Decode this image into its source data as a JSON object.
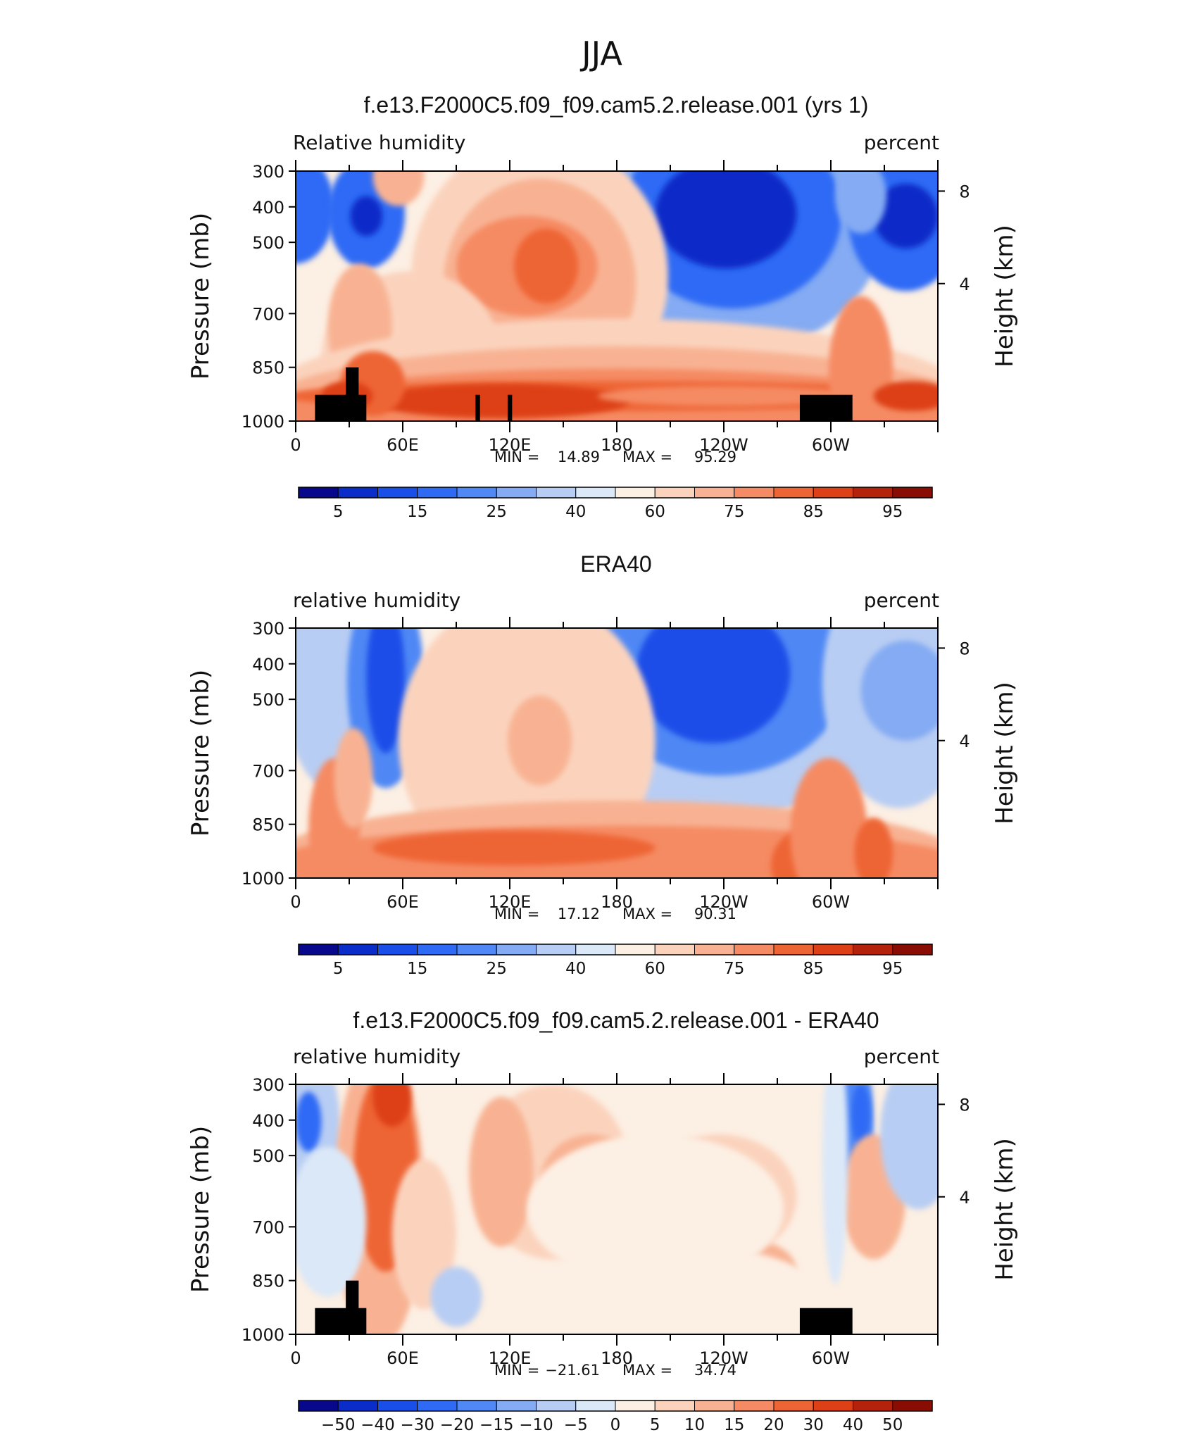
{
  "figure": {
    "title": "JJA"
  },
  "palettes": {
    "rh": [
      "#08088c",
      "#0a2cc8",
      "#1a4ee8",
      "#2f6af5",
      "#5088f5",
      "#84abf3",
      "#b8cdf3",
      "#dbe8f8",
      "#fcefe3",
      "#fbd3bd",
      "#f8b293",
      "#f58b64",
      "#ee6535",
      "#dd4016",
      "#b4220b",
      "#8a0d04"
    ],
    "diff": [
      "#08088c",
      "#0a2cc8",
      "#1a4ee8",
      "#2f6af5",
      "#5088f5",
      "#84abf3",
      "#b8cdf3",
      "#dbe8f8",
      "#fcefe3",
      "#fbd3bd",
      "#f8b293",
      "#f58b64",
      "#ee6535",
      "#dd4016",
      "#b4220b",
      "#8a0d04"
    ]
  },
  "chart_data": [
    {
      "type": "contour",
      "title": "f.e13.F2000C5.f09_f09.cam5.2.release.001 (yrs 1)",
      "variable_label": "Relative humidity",
      "units_label": "percent",
      "ylabel": "Pressure (mb)",
      "ylabel_right": "Height (km)",
      "y_ticks": [
        "300",
        "400",
        "500",
        "700",
        "850",
        "1000"
      ],
      "y_right_ticks": [
        "8",
        "4"
      ],
      "x_tick_labels": [
        "0",
        "60E",
        "120E",
        "180",
        "120W",
        "60W"
      ],
      "stats": {
        "min_label": "MIN =",
        "min": "14.89",
        "max_label": "MAX =",
        "max": "95.29"
      },
      "colorbar_labels": [
        "5",
        "15",
        "25",
        "40",
        "60",
        "75",
        "85",
        "95"
      ],
      "palette": "rh",
      "blobs": [
        {
          "cx": 0.0,
          "cy": 0.15,
          "rx": 0.06,
          "ry": 0.22,
          "level": 3
        },
        {
          "cx": 0.11,
          "cy": 0.17,
          "rx": 0.06,
          "ry": 0.22,
          "level": 3
        },
        {
          "cx": 0.11,
          "cy": 0.18,
          "rx": 0.025,
          "ry": 0.08,
          "level": 1
        },
        {
          "cx": 0.68,
          "cy": 0.18,
          "rx": 0.24,
          "ry": 0.55,
          "level": 5
        },
        {
          "cx": 0.68,
          "cy": 0.17,
          "rx": 0.17,
          "ry": 0.38,
          "level": 3
        },
        {
          "cx": 0.67,
          "cy": 0.17,
          "rx": 0.11,
          "ry": 0.22,
          "level": 1
        },
        {
          "cx": 0.95,
          "cy": 0.18,
          "rx": 0.09,
          "ry": 0.3,
          "level": 3
        },
        {
          "cx": 0.95,
          "cy": 0.18,
          "rx": 0.05,
          "ry": 0.13,
          "level": 1
        },
        {
          "cx": 0.88,
          "cy": 0.1,
          "rx": 0.04,
          "ry": 0.15,
          "level": 5
        },
        {
          "cx": 0.38,
          "cy": 0.42,
          "rx": 0.2,
          "ry": 0.55,
          "level": 9
        },
        {
          "cx": 0.38,
          "cy": 0.45,
          "rx": 0.15,
          "ry": 0.42,
          "level": 10
        },
        {
          "cx": 0.36,
          "cy": 0.38,
          "rx": 0.11,
          "ry": 0.2,
          "level": 11
        },
        {
          "cx": 0.39,
          "cy": 0.38,
          "rx": 0.05,
          "ry": 0.15,
          "level": 12
        },
        {
          "cx": 0.16,
          "cy": 0.02,
          "rx": 0.04,
          "ry": 0.12,
          "level": 10
        },
        {
          "cx": 0.18,
          "cy": 0.75,
          "rx": 0.14,
          "ry": 0.35,
          "level": 9
        },
        {
          "cx": 0.1,
          "cy": 0.62,
          "rx": 0.05,
          "ry": 0.25,
          "level": 10
        },
        {
          "cx": 0.5,
          "cy": 0.92,
          "rx": 0.55,
          "ry": 0.33,
          "level": 9
        },
        {
          "cx": 0.5,
          "cy": 0.94,
          "rx": 0.55,
          "ry": 0.24,
          "level": 10
        },
        {
          "cx": 0.5,
          "cy": 0.95,
          "rx": 0.53,
          "ry": 0.16,
          "level": 11
        },
        {
          "cx": 0.5,
          "cy": 0.9,
          "rx": 0.52,
          "ry": 0.06,
          "level": 12
        },
        {
          "cx": 0.32,
          "cy": 0.92,
          "rx": 0.2,
          "ry": 0.07,
          "level": 13
        },
        {
          "cx": 0.12,
          "cy": 0.85,
          "rx": 0.05,
          "ry": 0.13,
          "level": 12
        },
        {
          "cx": 0.08,
          "cy": 0.9,
          "rx": 0.04,
          "ry": 0.06,
          "level": 13
        },
        {
          "cx": 0.88,
          "cy": 0.8,
          "rx": 0.05,
          "ry": 0.3,
          "level": 11
        },
        {
          "cx": 0.96,
          "cy": 0.9,
          "rx": 0.06,
          "ry": 0.06,
          "level": 13
        },
        {
          "cx": 0.67,
          "cy": 0.9,
          "rx": 0.2,
          "ry": 0.04,
          "level": 11
        }
      ],
      "land": true
    },
    {
      "type": "contour",
      "title": "ERA40",
      "variable_label": "relative humidity",
      "units_label": "percent",
      "ylabel": "Pressure (mb)",
      "ylabel_right": "Height (km)",
      "y_ticks": [
        "300",
        "400",
        "500",
        "700",
        "850",
        "1000"
      ],
      "y_right_ticks": [
        "8",
        "4"
      ],
      "x_tick_labels": [
        "0",
        "60E",
        "120E",
        "180",
        "120W",
        "60W"
      ],
      "stats": {
        "min_label": "MIN =",
        "min": "17.12",
        "max_label": "MAX =",
        "max": "90.31"
      },
      "colorbar_labels": [
        "5",
        "15",
        "25",
        "40",
        "60",
        "75",
        "85",
        "95"
      ],
      "palette": "rh",
      "blobs": [
        {
          "cx": 0.06,
          "cy": 0.2,
          "rx": 0.08,
          "ry": 0.45,
          "level": 6
        },
        {
          "cx": 0.14,
          "cy": 0.22,
          "rx": 0.06,
          "ry": 0.42,
          "level": 4
        },
        {
          "cx": 0.14,
          "cy": 0.2,
          "rx": 0.03,
          "ry": 0.3,
          "level": 2
        },
        {
          "cx": 0.66,
          "cy": 0.17,
          "rx": 0.27,
          "ry": 0.6,
          "level": 6
        },
        {
          "cx": 0.66,
          "cy": 0.17,
          "rx": 0.2,
          "ry": 0.42,
          "level": 4
        },
        {
          "cx": 0.65,
          "cy": 0.18,
          "rx": 0.12,
          "ry": 0.28,
          "level": 2
        },
        {
          "cx": 0.94,
          "cy": 0.22,
          "rx": 0.12,
          "ry": 0.5,
          "level": 6
        },
        {
          "cx": 0.95,
          "cy": 0.25,
          "rx": 0.07,
          "ry": 0.2,
          "level": 5
        },
        {
          "cx": 0.36,
          "cy": 0.45,
          "rx": 0.2,
          "ry": 0.58,
          "level": 9
        },
        {
          "cx": 0.38,
          "cy": 0.45,
          "rx": 0.05,
          "ry": 0.18,
          "level": 10
        },
        {
          "cx": 0.5,
          "cy": 0.94,
          "rx": 0.55,
          "ry": 0.25,
          "level": 10
        },
        {
          "cx": 0.5,
          "cy": 0.95,
          "rx": 0.55,
          "ry": 0.16,
          "level": 11
        },
        {
          "cx": 0.34,
          "cy": 0.88,
          "rx": 0.22,
          "ry": 0.07,
          "level": 12
        },
        {
          "cx": 0.06,
          "cy": 0.8,
          "rx": 0.04,
          "ry": 0.28,
          "level": 11
        },
        {
          "cx": 0.09,
          "cy": 0.6,
          "rx": 0.03,
          "ry": 0.2,
          "level": 10
        },
        {
          "cx": 0.79,
          "cy": 0.95,
          "rx": 0.05,
          "ry": 0.14,
          "level": 12
        },
        {
          "cx": 0.83,
          "cy": 0.82,
          "rx": 0.06,
          "ry": 0.3,
          "level": 11
        },
        {
          "cx": 0.9,
          "cy": 0.9,
          "rx": 0.03,
          "ry": 0.14,
          "level": 12
        }
      ],
      "land": false
    },
    {
      "type": "contour",
      "title": "f.e13.F2000C5.f09_f09.cam5.2.release.001 - ERA40",
      "variable_label": "relative humidity",
      "units_label": "percent",
      "ylabel": "Pressure (mb)",
      "ylabel_right": "Height (km)",
      "y_ticks": [
        "300",
        "400",
        "500",
        "700",
        "850",
        "1000"
      ],
      "y_right_ticks": [
        "8",
        "4"
      ],
      "x_tick_labels": [
        "0",
        "60E",
        "120E",
        "180",
        "120W",
        "60W"
      ],
      "stats": {
        "min_label": "MIN =",
        "min": "−21.61",
        "max_label": "MAX =",
        "max": "34.74"
      },
      "colorbar_labels": [
        "−50",
        "−40",
        "−30",
        "−20",
        "−15",
        "−10",
        "−5",
        "0",
        "5",
        "10",
        "15",
        "20",
        "30",
        "40",
        "50"
      ],
      "palette": "diff",
      "blobs": [
        {
          "cx": 0.02,
          "cy": 0.2,
          "rx": 0.05,
          "ry": 0.35,
          "level": 6
        },
        {
          "cx": 0.02,
          "cy": 0.15,
          "rx": 0.02,
          "ry": 0.12,
          "level": 3
        },
        {
          "cx": 0.13,
          "cy": 0.45,
          "rx": 0.07,
          "ry": 0.6,
          "level": 10
        },
        {
          "cx": 0.14,
          "cy": 0.35,
          "rx": 0.05,
          "ry": 0.4,
          "level": 12
        },
        {
          "cx": 0.15,
          "cy": 0.05,
          "rx": 0.03,
          "ry": 0.12,
          "level": 13
        },
        {
          "cx": 0.2,
          "cy": 0.6,
          "rx": 0.05,
          "ry": 0.3,
          "level": 9
        },
        {
          "cx": 0.4,
          "cy": 0.35,
          "rx": 0.12,
          "ry": 0.35,
          "level": 9
        },
        {
          "cx": 0.32,
          "cy": 0.35,
          "rx": 0.05,
          "ry": 0.3,
          "level": 10
        },
        {
          "cx": 0.46,
          "cy": 0.4,
          "rx": 0.08,
          "ry": 0.2,
          "level": 10
        },
        {
          "cx": 0.66,
          "cy": 0.45,
          "rx": 0.12,
          "ry": 0.25,
          "level": 9
        },
        {
          "cx": 0.72,
          "cy": 0.75,
          "rx": 0.06,
          "ry": 0.12,
          "level": 10
        },
        {
          "cx": 0.56,
          "cy": 0.5,
          "rx": 0.2,
          "ry": 0.3,
          "level": 8
        },
        {
          "cx": 0.87,
          "cy": 0.15,
          "rx": 0.03,
          "ry": 0.3,
          "level": 4
        },
        {
          "cx": 0.88,
          "cy": 0.12,
          "rx": 0.015,
          "ry": 0.12,
          "level": 3
        },
        {
          "cx": 0.9,
          "cy": 0.45,
          "rx": 0.05,
          "ry": 0.25,
          "level": 10
        },
        {
          "cx": 0.97,
          "cy": 0.2,
          "rx": 0.06,
          "ry": 0.3,
          "level": 6
        },
        {
          "cx": 0.05,
          "cy": 0.55,
          "rx": 0.06,
          "ry": 0.3,
          "level": 7
        },
        {
          "cx": 0.25,
          "cy": 0.85,
          "rx": 0.04,
          "ry": 0.12,
          "level": 6
        },
        {
          "cx": 0.62,
          "cy": 0.85,
          "rx": 0.2,
          "ry": 0.2,
          "level": 8
        },
        {
          "cx": 0.84,
          "cy": 0.3,
          "rx": 0.02,
          "ry": 0.5,
          "level": 7
        }
      ],
      "land": true
    }
  ]
}
